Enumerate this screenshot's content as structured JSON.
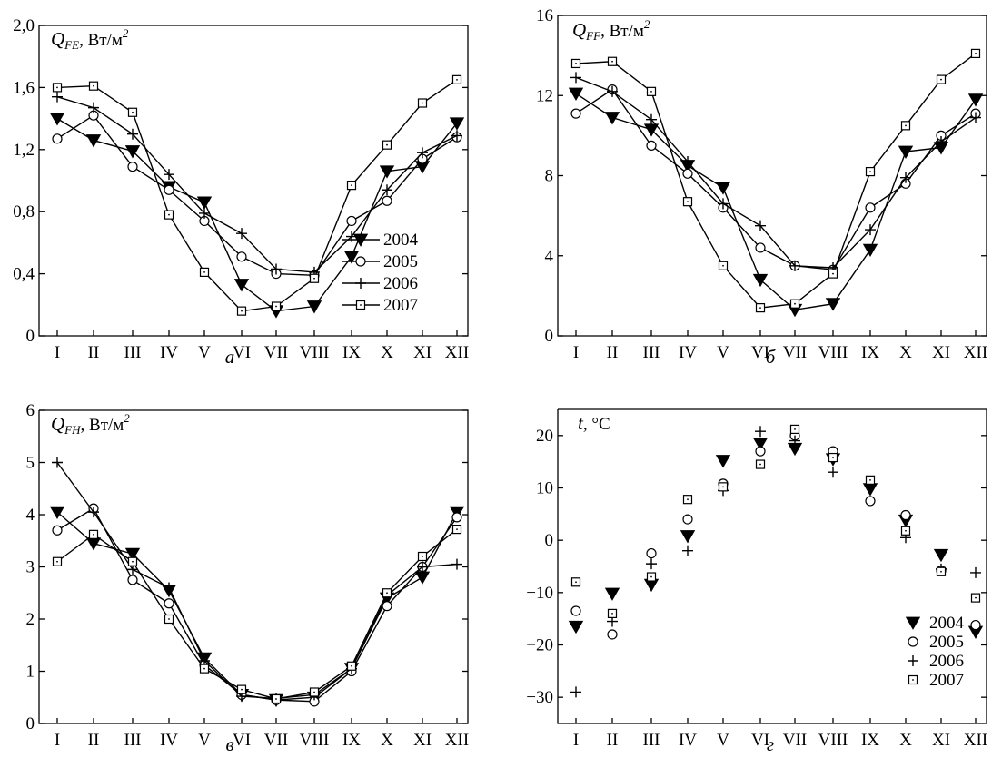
{
  "chart_data": [
    {
      "id": "a",
      "type": "line",
      "letter": "а",
      "ylabel": {
        "symbol": "Q",
        "sub": "FE",
        "unit": ", Вт/м",
        "sup": "2"
      },
      "categories": [
        "I",
        "II",
        "III",
        "IV",
        "V",
        "VI",
        "VII",
        "VIII",
        "IX",
        "X",
        "XI",
        "XII"
      ],
      "ylim": [
        0,
        2.0
      ],
      "yticks": [
        0,
        0.4,
        0.8,
        1.2,
        1.6,
        2.0
      ],
      "ytick_labels": [
        "0",
        "0,4",
        "0,8",
        "1,2",
        "1,6",
        "2,0"
      ],
      "legend_position": "center-right",
      "series": [
        {
          "name": "2004",
          "marker": "triangle",
          "values": [
            1.4,
            1.26,
            1.19,
            0.96,
            0.86,
            0.33,
            0.16,
            0.19,
            0.51,
            1.06,
            1.09,
            1.37
          ]
        },
        {
          "name": "2005",
          "marker": "circle",
          "values": [
            1.27,
            1.42,
            1.09,
            0.94,
            0.74,
            0.51,
            0.4,
            0.39,
            0.74,
            0.87,
            1.14,
            1.28
          ]
        },
        {
          "name": "2006",
          "marker": "plus",
          "values": [
            1.54,
            1.47,
            1.3,
            1.04,
            0.79,
            0.66,
            0.43,
            0.41,
            0.64,
            0.94,
            1.18,
            1.29
          ]
        },
        {
          "name": "2007",
          "marker": "square",
          "values": [
            1.6,
            1.61,
            1.44,
            0.78,
            0.41,
            0.16,
            0.19,
            0.37,
            0.97,
            1.23,
            1.5,
            1.65
          ]
        }
      ]
    },
    {
      "id": "b",
      "type": "line",
      "letter": "б",
      "ylabel": {
        "symbol": "Q",
        "sub": "FF",
        "unit": ", Вт/м",
        "sup": "2"
      },
      "categories": [
        "I",
        "II",
        "III",
        "IV",
        "V",
        "VI",
        "VII",
        "VIII",
        "IX",
        "X",
        "XI",
        "XII"
      ],
      "ylim": [
        0,
        16
      ],
      "yticks": [
        0,
        4,
        8,
        12,
        16
      ],
      "ytick_labels": [
        "0",
        "4",
        "8",
        "12",
        "16"
      ],
      "series": [
        {
          "name": "2004",
          "marker": "triangle",
          "values": [
            12.1,
            10.9,
            10.3,
            8.5,
            7.4,
            2.8,
            1.3,
            1.6,
            4.3,
            9.2,
            9.4,
            11.8
          ]
        },
        {
          "name": "2005",
          "marker": "circle",
          "values": [
            11.1,
            12.3,
            9.5,
            8.1,
            6.4,
            4.4,
            3.5,
            3.3,
            6.4,
            7.6,
            10.0,
            11.1
          ]
        },
        {
          "name": "2006",
          "marker": "plus",
          "values": [
            12.9,
            12.2,
            10.8,
            8.7,
            6.6,
            5.5,
            3.5,
            3.4,
            5.3,
            7.9,
            9.7,
            10.9
          ]
        },
        {
          "name": "2007",
          "marker": "square",
          "values": [
            13.6,
            13.7,
            12.2,
            6.7,
            3.5,
            1.4,
            1.6,
            3.1,
            8.2,
            10.5,
            12.8,
            14.1
          ]
        }
      ]
    },
    {
      "id": "v",
      "type": "line",
      "letter": "в",
      "ylabel": {
        "symbol": "Q",
        "sub": "FH",
        "unit": ", Вт/м",
        "sup": "2"
      },
      "categories": [
        "I",
        "II",
        "III",
        "IV",
        "V",
        "VI",
        "VII",
        "VIII",
        "IX",
        "X",
        "XI",
        "XII"
      ],
      "ylim": [
        0,
        6
      ],
      "yticks": [
        0,
        1,
        2,
        3,
        4,
        5,
        6
      ],
      "ytick_labels": [
        "0",
        "1",
        "2",
        "3",
        "4",
        "5",
        "6"
      ],
      "series": [
        {
          "name": "2004",
          "marker": "triangle",
          "values": [
            4.05,
            3.45,
            3.25,
            2.55,
            1.25,
            0.55,
            0.45,
            0.5,
            1.05,
            2.4,
            2.8,
            4.05
          ]
        },
        {
          "name": "2005",
          "marker": "circle",
          "values": [
            3.7,
            4.12,
            2.75,
            2.3,
            1.12,
            0.55,
            0.45,
            0.42,
            1.0,
            2.25,
            3.0,
            3.95
          ]
        },
        {
          "name": "2006",
          "marker": "plus",
          "values": [
            5.0,
            4.05,
            2.95,
            2.6,
            1.2,
            0.52,
            0.48,
            0.55,
            1.05,
            2.45,
            3.0,
            3.05
          ]
        },
        {
          "name": "2007",
          "marker": "square",
          "values": [
            3.1,
            3.62,
            3.1,
            2.0,
            1.05,
            0.65,
            0.47,
            0.6,
            1.1,
            2.5,
            3.2,
            3.72
          ]
        }
      ]
    },
    {
      "id": "g",
      "type": "scatter",
      "letter": "г",
      "ylabel": {
        "symbol": "t",
        "sub": "",
        "unit": ", °C",
        "sup": ""
      },
      "categories": [
        "I",
        "II",
        "III",
        "IV",
        "V",
        "VI",
        "VII",
        "VIII",
        "IX",
        "X",
        "XI",
        "XII"
      ],
      "ylim": [
        -35,
        25
      ],
      "yticks": [
        -30,
        -20,
        -10,
        0,
        10,
        20
      ],
      "ytick_labels": [
        "−30",
        "−20",
        "−10",
        "0",
        "10",
        "20"
      ],
      "legend_position": "bottom-right",
      "series": [
        {
          "name": "2004",
          "marker": "triangle",
          "values": [
            -16.5,
            -10.2,
            -8.5,
            0.8,
            15.2,
            18.5,
            17.5,
            15.5,
            9.8,
            3.8,
            -2.8,
            -17.5
          ]
        },
        {
          "name": "2005",
          "marker": "circle",
          "values": [
            -13.5,
            -18.0,
            -2.5,
            4.0,
            10.8,
            17.0,
            20.0,
            17.0,
            7.5,
            4.8,
            -5.8,
            -16.2
          ]
        },
        {
          "name": "2006",
          "marker": "plus",
          "values": [
            -29.0,
            -15.5,
            -4.5,
            -2.0,
            9.5,
            20.8,
            19.0,
            13.0,
            10.5,
            0.5,
            -5.5,
            -6.2
          ]
        },
        {
          "name": "2007",
          "marker": "square",
          "values": [
            -8.0,
            -14.0,
            -7.0,
            7.8,
            10.2,
            14.5,
            21.2,
            15.8,
            11.5,
            1.8,
            -6.0,
            -11.0
          ]
        }
      ]
    }
  ]
}
